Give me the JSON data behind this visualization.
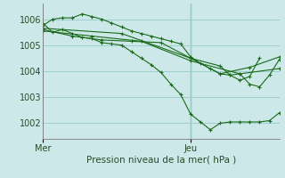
{
  "bg_color": "#cce8e8",
  "grid_color": "#9ecece",
  "line_color": "#1a6b1a",
  "marker_color": "#1a6b1a",
  "xlabel": "Pression niveau de la mer( hPa )",
  "yticks": [
    1002,
    1003,
    1004,
    1005,
    1006
  ],
  "ylim": [
    1001.4,
    1006.6
  ],
  "xlim": [
    0,
    48
  ],
  "xtick_labels": [
    "Mer",
    "Jeu"
  ],
  "xtick_positions": [
    0,
    30
  ],
  "vline_x": 30,
  "series": [
    [
      0,
      1005.85,
      2,
      1005.5,
      4,
      1005.6,
      6,
      1005.45,
      8,
      1005.3,
      10,
      1005.25,
      12,
      1005.1,
      14,
      1005.05,
      16,
      1005.0,
      18,
      1004.75,
      20,
      1004.5,
      22,
      1004.25,
      24,
      1003.95,
      26,
      1003.5,
      28,
      1003.1,
      30,
      1002.35,
      32,
      1002.05,
      34,
      1001.75,
      36,
      1002.0,
      38,
      1002.05,
      40,
      1002.05,
      42,
      1002.05,
      44,
      1002.05,
      46,
      1002.1,
      48,
      1002.4
    ],
    [
      0,
      1005.75,
      2,
      1006.0,
      4,
      1006.05,
      6,
      1006.05,
      8,
      1006.2,
      10,
      1006.1,
      12,
      1006.0,
      14,
      1005.85,
      16,
      1005.7,
      18,
      1005.55,
      20,
      1005.45,
      22,
      1005.35,
      24,
      1005.25,
      26,
      1005.15,
      28,
      1005.05,
      30,
      1004.55,
      32,
      1004.3,
      34,
      1004.1,
      36,
      1003.9,
      38,
      1003.85,
      40,
      1003.65,
      42,
      1003.8,
      44,
      1004.5
    ],
    [
      0,
      1005.6,
      6,
      1005.35,
      12,
      1005.2,
      18,
      1005.15,
      24,
      1005.1,
      30,
      1004.5,
      36,
      1003.9,
      42,
      1004.15,
      48,
      1004.55
    ],
    [
      0,
      1005.55,
      10,
      1005.35,
      20,
      1005.15,
      30,
      1004.4,
      40,
      1003.9,
      48,
      1004.1
    ],
    [
      0,
      1005.65,
      16,
      1005.45,
      30,
      1004.5,
      36,
      1004.2,
      38,
      1003.85,
      40,
      1003.9,
      42,
      1003.5,
      44,
      1003.4,
      46,
      1003.85,
      48,
      1004.45
    ]
  ]
}
